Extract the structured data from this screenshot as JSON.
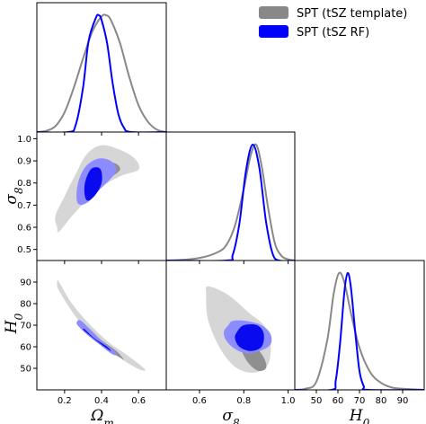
{
  "colors": {
    "template": "#888888",
    "rf": "#0000ff",
    "template_fill_outer": "#d6d6d6",
    "template_fill_inner": "#8f8f8f",
    "rf_fill_outer": "#8c8cff",
    "rf_fill_inner": "#0a0aee"
  },
  "legend": {
    "placement": "top-right",
    "entries": [
      {
        "label": "SPT (tSZ template)",
        "color": "#888888"
      },
      {
        "label": "SPT (tSZ RF)",
        "color": "#0000ff"
      }
    ]
  },
  "axis_labels": {
    "omega_m": "Ωm",
    "sigma8": "σ8",
    "h0": "H0"
  },
  "ticks": {
    "omega_m": [
      {
        "v": 0.2,
        "label": "0.2"
      },
      {
        "v": 0.4,
        "label": "0.4"
      },
      {
        "v": 0.6,
        "label": "0.6"
      }
    ],
    "sigma8_x": [
      {
        "v": 0.6,
        "label": "0.6"
      },
      {
        "v": 0.8,
        "label": "0.8"
      },
      {
        "v": 1.0,
        "label": "1.0"
      }
    ],
    "sigma8_y": [
      {
        "v": 0.5,
        "label": "0.5"
      },
      {
        "v": 0.6,
        "label": "0.6"
      },
      {
        "v": 0.7,
        "label": "0.7"
      },
      {
        "v": 0.8,
        "label": "0.8"
      },
      {
        "v": 0.9,
        "label": "0.9"
      },
      {
        "v": 1.0,
        "label": "1.0"
      }
    ],
    "h0_x": [
      {
        "v": 50,
        "label": "50"
      },
      {
        "v": 60,
        "label": "60"
      },
      {
        "v": 70,
        "label": "70"
      },
      {
        "v": 80,
        "label": "80"
      },
      {
        "v": 90,
        "label": "90"
      }
    ],
    "h0_y": [
      {
        "v": 50,
        "label": "50"
      },
      {
        "v": 60,
        "label": "60"
      },
      {
        "v": 70,
        "label": "70"
      },
      {
        "v": 80,
        "label": "80"
      },
      {
        "v": 90,
        "label": "90"
      }
    ]
  },
  "chart_data": {
    "type": "corner",
    "parameters": [
      "Omega_m",
      "sigma_8",
      "H_0"
    ],
    "ranges": {
      "Omega_m": [
        0.05,
        0.75
      ],
      "sigma_8": [
        0.45,
        1.03
      ],
      "H_0": [
        40,
        100
      ]
    },
    "series": [
      {
        "name": "SPT (tSZ template)",
        "marginals": {
          "Omega_m": [
            [
              0.05,
              0.0
            ],
            [
              0.1,
              0.01
            ],
            [
              0.15,
              0.05
            ],
            [
              0.2,
              0.17
            ],
            [
              0.25,
              0.38
            ],
            [
              0.3,
              0.63
            ],
            [
              0.35,
              0.86
            ],
            [
              0.4,
              0.99
            ],
            [
              0.425,
              1.0
            ],
            [
              0.45,
              0.96
            ],
            [
              0.5,
              0.76
            ],
            [
              0.55,
              0.47
            ],
            [
              0.6,
              0.23
            ],
            [
              0.65,
              0.09
            ],
            [
              0.7,
              0.02
            ],
            [
              0.75,
              0.0
            ]
          ],
          "sigma_8": [
            [
              0.45,
              0.0
            ],
            [
              0.55,
              0.01
            ],
            [
              0.62,
              0.03
            ],
            [
              0.68,
              0.07
            ],
            [
              0.72,
              0.13
            ],
            [
              0.76,
              0.3
            ],
            [
              0.8,
              0.62
            ],
            [
              0.83,
              0.9
            ],
            [
              0.855,
              1.0
            ],
            [
              0.88,
              0.82
            ],
            [
              0.91,
              0.45
            ],
            [
              0.94,
              0.15
            ],
            [
              0.97,
              0.04
            ],
            [
              1.0,
              0.01
            ],
            [
              1.03,
              0.0
            ]
          ],
          "H_0": [
            [
              40,
              0.0
            ],
            [
              45,
              0.01
            ],
            [
              50,
              0.07
            ],
            [
              55,
              0.42
            ],
            [
              58,
              0.82
            ],
            [
              60.5,
              1.0
            ],
            [
              63,
              0.92
            ],
            [
              66,
              0.66
            ],
            [
              70,
              0.36
            ],
            [
              75,
              0.15
            ],
            [
              80,
              0.06
            ],
            [
              85,
              0.02
            ],
            [
              90,
              0.01
            ],
            [
              100,
              0.0
            ]
          ]
        },
        "contours": {
          "sigma_8_vs_Omega_m": {
            "outer": [
              [
                0.16,
                0.6
              ],
              [
                0.15,
                0.65
              ],
              [
                0.2,
                0.74
              ],
              [
                0.26,
                0.84
              ],
              [
                0.32,
                0.93
              ],
              [
                0.4,
                0.97
              ],
              [
                0.5,
                0.95
              ],
              [
                0.58,
                0.91
              ],
              [
                0.6,
                0.86
              ],
              [
                0.5,
                0.83
              ],
              [
                0.38,
                0.77
              ],
              [
                0.25,
                0.66
              ],
              [
                0.17,
                0.58
              ]
            ],
            "inner": [
              [
                0.31,
                0.8
              ],
              [
                0.33,
                0.86
              ],
              [
                0.4,
                0.89
              ],
              [
                0.47,
                0.89
              ],
              [
                0.5,
                0.86
              ],
              [
                0.44,
                0.82
              ],
              [
                0.36,
                0.78
              ]
            ]
          },
          "H_0_vs_Omega_m": {
            "outer": [
              [
                0.16,
                90
              ],
              [
                0.17,
                86
              ],
              [
                0.26,
                74
              ],
              [
                0.35,
                65
              ],
              [
                0.45,
                58
              ],
              [
                0.55,
                52
              ],
              [
                0.62,
                49
              ],
              [
                0.63,
                50
              ],
              [
                0.54,
                56
              ],
              [
                0.44,
                62
              ],
              [
                0.34,
                70
              ],
              [
                0.24,
                80
              ],
              [
                0.17,
                90
              ]
            ],
            "inner": [
              [
                0.3,
                69
              ],
              [
                0.36,
                64
              ],
              [
                0.44,
                58
              ],
              [
                0.5,
                55
              ],
              [
                0.52,
                54
              ],
              [
                0.48,
                58
              ],
              [
                0.4,
                63
              ],
              [
                0.33,
                68
              ]
            ]
          },
          "H_0_vs_sigma_8": {
            "outer": [
              [
                0.64,
                88
              ],
              [
                0.73,
                84
              ],
              [
                0.82,
                76
              ],
              [
                0.89,
                70
              ],
              [
                0.92,
                62
              ],
              [
                0.91,
                52
              ],
              [
                0.85,
                48
              ],
              [
                0.77,
                50
              ],
              [
                0.7,
                58
              ],
              [
                0.64,
                72
              ],
              [
                0.63,
                84
              ]
            ],
            "inner": [
              [
                0.79,
                68
              ],
              [
                0.84,
                62
              ],
              [
                0.89,
                55
              ],
              [
                0.9,
                50
              ],
              [
                0.86,
                49
              ],
              [
                0.81,
                54
              ],
              [
                0.78,
                62
              ]
            ]
          }
        }
      },
      {
        "name": "SPT (tSZ RF)",
        "marginals": {
          "Omega_m": [
            [
              0.05,
              0.0
            ],
            [
              0.22,
              0.0
            ],
            [
              0.26,
              0.06
            ],
            [
              0.3,
              0.38
            ],
            [
              0.33,
              0.78
            ],
            [
              0.37,
              0.98
            ],
            [
              0.385,
              1.0
            ],
            [
              0.4,
              0.96
            ],
            [
              0.43,
              0.76
            ],
            [
              0.46,
              0.42
            ],
            [
              0.49,
              0.16
            ],
            [
              0.52,
              0.04
            ],
            [
              0.56,
              0.0
            ],
            [
              0.75,
              0.0
            ]
          ],
          "sigma_8": [
            [
              0.45,
              0.0
            ],
            [
              0.72,
              0.0
            ],
            [
              0.75,
              0.05
            ],
            [
              0.78,
              0.32
            ],
            [
              0.81,
              0.78
            ],
            [
              0.84,
              1.0
            ],
            [
              0.87,
              0.8
            ],
            [
              0.9,
              0.34
            ],
            [
              0.93,
              0.06
            ],
            [
              0.96,
              0.0
            ],
            [
              1.03,
              0.0
            ]
          ],
          "H_0": [
            [
              40,
              0.0
            ],
            [
              57,
              0.0
            ],
            [
              59,
              0.08
            ],
            [
              61,
              0.4
            ],
            [
              63,
              0.84
            ],
            [
              64.5,
              1.0
            ],
            [
              66,
              0.88
            ],
            [
              68,
              0.5
            ],
            [
              70,
              0.16
            ],
            [
              72,
              0.03
            ],
            [
              74,
              0.0
            ],
            [
              100,
              0.0
            ]
          ]
        },
        "contours": {
          "sigma_8_vs_Omega_m": {
            "outer": [
              [
                0.27,
                0.71
              ],
              [
                0.27,
                0.79
              ],
              [
                0.31,
                0.87
              ],
              [
                0.38,
                0.91
              ],
              [
                0.45,
                0.9
              ],
              [
                0.48,
                0.86
              ],
              [
                0.45,
                0.82
              ],
              [
                0.39,
                0.77
              ],
              [
                0.32,
                0.71
              ]
            ],
            "inner": [
              [
                0.31,
                0.74
              ],
              [
                0.31,
                0.8
              ],
              [
                0.34,
                0.86
              ],
              [
                0.38,
                0.87
              ],
              [
                0.4,
                0.85
              ],
              [
                0.4,
                0.8
              ],
              [
                0.37,
                0.75
              ],
              [
                0.33,
                0.72
              ]
            ]
          },
          "H_0_vs_Omega_m": {
            "outer": [
              [
                0.27,
                72
              ],
              [
                0.27,
                70
              ],
              [
                0.33,
                65
              ],
              [
                0.39,
                61
              ],
              [
                0.45,
                57
              ],
              [
                0.48,
                56
              ],
              [
                0.47,
                58
              ],
              [
                0.41,
                62
              ],
              [
                0.34,
                68
              ],
              [
                0.29,
                72
              ]
            ],
            "inner": [
              [
                0.3,
                68
              ],
              [
                0.34,
                65
              ],
              [
                0.4,
                61
              ],
              [
                0.45,
                58
              ],
              [
                0.43,
                60
              ],
              [
                0.36,
                64
              ],
              [
                0.31,
                68
              ]
            ]
          },
          "H_0_vs_sigma_8": {
            "outer": [
              [
                0.73,
                70
              ],
              [
                0.75,
                72
              ],
              [
                0.81,
                72
              ],
              [
                0.88,
                70
              ],
              [
                0.92,
                66
              ],
              [
                0.92,
                61
              ],
              [
                0.87,
                58
              ],
              [
                0.81,
                57
              ],
              [
                0.76,
                59
              ],
              [
                0.72,
                63
              ],
              [
                0.71,
                67
              ]
            ],
            "inner": [
              [
                0.77,
                67
              ],
              [
                0.8,
                70
              ],
              [
                0.86,
                70
              ],
              [
                0.89,
                66
              ],
              [
                0.88,
                60
              ],
              [
                0.83,
                58
              ],
              [
                0.78,
                60
              ],
              [
                0.76,
                64
              ]
            ]
          }
        }
      }
    ]
  }
}
